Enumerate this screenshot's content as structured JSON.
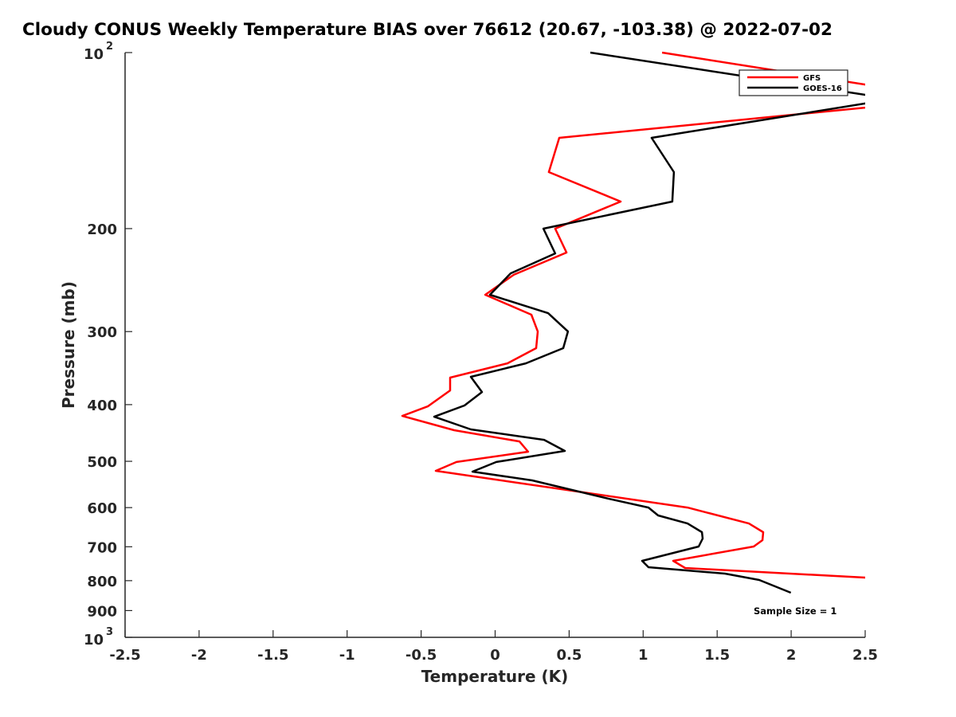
{
  "chart_data": {
    "type": "line",
    "title": "Cloudy CONUS Weekly Temperature BIAS over 76612 (20.67, -103.38) @ 2022-07-02",
    "xlabel": "Temperature (K)",
    "ylabel": "Pressure (mb)",
    "xlim": [
      -2.5,
      2.5
    ],
    "ylim": [
      100,
      1000
    ],
    "yscale": "log",
    "y_reversed": true,
    "xticks": [
      "-2.5",
      "-2",
      "-1.5",
      "-1",
      "-0.5",
      "0",
      "0.5",
      "1",
      "1.5",
      "2",
      "2.5"
    ],
    "xtick_values": [
      -2.5,
      -2,
      -1.5,
      -1,
      -0.5,
      0,
      0.5,
      1,
      1.5,
      2,
      2.5
    ],
    "yticks": [
      {
        "value": 100,
        "base": "10",
        "exp": "2"
      },
      {
        "value": 200,
        "label": "200"
      },
      {
        "value": 300,
        "label": "300"
      },
      {
        "value": 400,
        "label": "400"
      },
      {
        "value": 500,
        "label": "500"
      },
      {
        "value": 600,
        "label": "600"
      },
      {
        "value": 700,
        "label": "700"
      },
      {
        "value": 800,
        "label": "800"
      },
      {
        "value": 900,
        "label": "900"
      },
      {
        "value": 1000,
        "base": "10",
        "exp": "3"
      }
    ],
    "grid": false,
    "legend_position": "top-right",
    "annotation": "Sample Size = 1",
    "series": [
      {
        "name": "GFS",
        "color": "#ff0000",
        "points": [
          [
            1.128,
            100
          ],
          [
            2.5,
            113.4
          ],
          [
            3.0,
            119
          ],
          [
            2.5,
            124.2
          ],
          [
            0.433,
            139.9
          ],
          [
            0.363,
            160.1
          ],
          [
            0.848,
            179.8
          ],
          [
            0.406,
            200
          ],
          [
            0.482,
            219.8
          ],
          [
            0.126,
            239.9
          ],
          [
            -0.067,
            259.5
          ],
          [
            0.245,
            280.7
          ],
          [
            0.288,
            299.9
          ],
          [
            0.277,
            320.2
          ],
          [
            0.083,
            340
          ],
          [
            -0.304,
            359.6
          ],
          [
            -0.304,
            378.3
          ],
          [
            -0.455,
            402.7
          ],
          [
            -0.627,
            418.2
          ],
          [
            -0.277,
            442.4
          ],
          [
            0.164,
            462.4
          ],
          [
            0.223,
            481.5
          ],
          [
            -0.261,
            501.4
          ],
          [
            -0.401,
            519.1
          ],
          [
            1.3,
            599.8
          ],
          [
            1.714,
            638.7
          ],
          [
            1.811,
            660.9
          ],
          [
            1.806,
            682
          ],
          [
            1.747,
            699.3
          ],
          [
            1.203,
            739.9
          ],
          [
            1.284,
            761.2
          ],
          [
            2.5,
            790.4
          ],
          [
            2.6,
            792
          ]
        ]
      },
      {
        "name": "GOES-16",
        "color": "#000000",
        "points": [
          [
            0.643,
            100
          ],
          [
            2.5,
            118.1
          ],
          [
            2.65,
            120.5
          ],
          [
            2.5,
            122.2
          ],
          [
            1.057,
            139.9
          ],
          [
            1.208,
            160.1
          ],
          [
            1.197,
            179.8
          ],
          [
            0.326,
            200
          ],
          [
            0.406,
            220.5
          ],
          [
            0.105,
            238.5
          ],
          [
            -0.035,
            259.5
          ],
          [
            0.358,
            279
          ],
          [
            0.492,
            299.9
          ],
          [
            0.46,
            320.2
          ],
          [
            0.207,
            340
          ],
          [
            -0.164,
            358.5
          ],
          [
            -0.089,
            380.6
          ],
          [
            -0.207,
            401.4
          ],
          [
            -0.412,
            419.5
          ],
          [
            -0.164,
            441
          ],
          [
            0.331,
            459.5
          ],
          [
            0.471,
            479.9
          ],
          [
            0.008,
            501.4
          ],
          [
            -0.153,
            520.7
          ],
          [
            0.25,
            539
          ],
          [
            0.762,
            579
          ],
          [
            1.036,
            599.8
          ],
          [
            1.101,
            618.8
          ],
          [
            1.3,
            638.7
          ],
          [
            1.397,
            660.9
          ],
          [
            1.402,
            677.8
          ],
          [
            1.375,
            699.3
          ],
          [
            0.993,
            739.9
          ],
          [
            1.036,
            758.7
          ],
          [
            1.553,
            778
          ],
          [
            1.784,
            797.9
          ],
          [
            1.998,
            838.9
          ]
        ]
      }
    ]
  }
}
